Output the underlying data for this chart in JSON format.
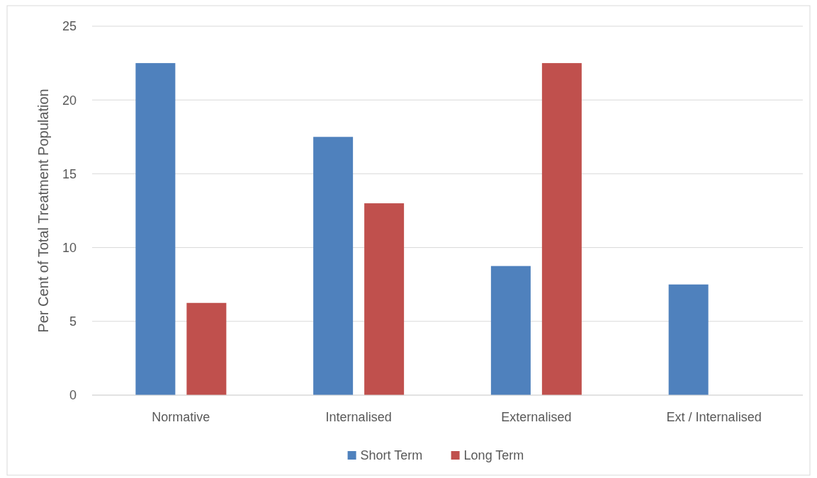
{
  "chart_data": {
    "type": "bar",
    "ylabel": "Per Cent of Total Treatment Population",
    "categories": [
      "Normative",
      "Internalised",
      "Externalised",
      "Ext / Internalised"
    ],
    "series": [
      {
        "name": "Short Term",
        "color": "#4f81bd",
        "values": [
          22.5,
          17.5,
          8.75,
          7.5
        ]
      },
      {
        "name": "Long Term",
        "color": "#c0504d",
        "values": [
          6.25,
          13,
          22.5,
          0
        ]
      }
    ],
    "ylim": [
      0,
      25
    ],
    "yticks": [
      0,
      5,
      10,
      15,
      20,
      25
    ],
    "grid": "y",
    "legend": "bottom"
  }
}
